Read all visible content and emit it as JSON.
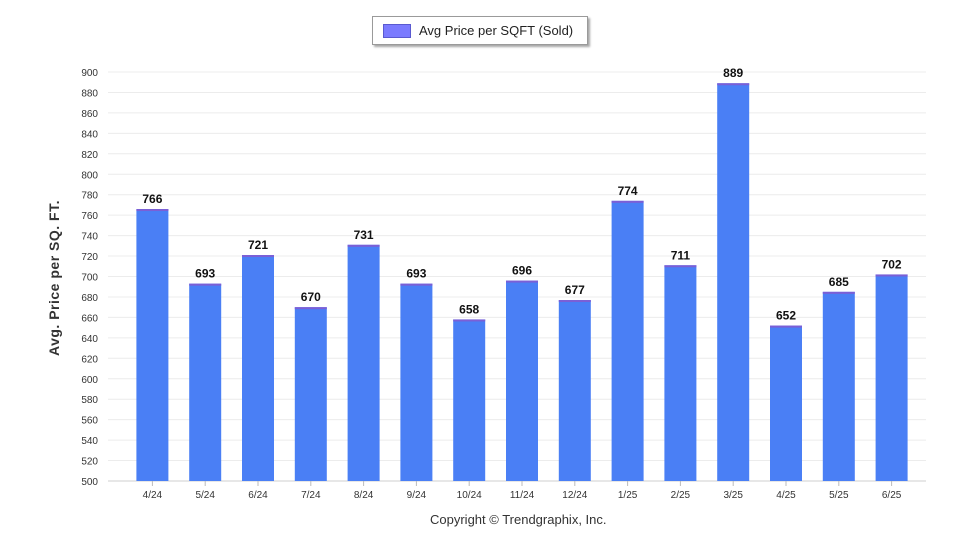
{
  "chart_data": {
    "type": "bar",
    "categories": [
      "4/24",
      "5/24",
      "6/24",
      "7/24",
      "8/24",
      "9/24",
      "10/24",
      "11/24",
      "12/24",
      "1/25",
      "2/25",
      "3/25",
      "4/25",
      "5/25",
      "6/25"
    ],
    "series": [
      {
        "name": "Avg Price per SQFT (Sold)",
        "values": [
          766,
          693,
          721,
          670,
          731,
          693,
          658,
          696,
          677,
          774,
          711,
          889,
          652,
          685,
          702
        ]
      }
    ],
    "ylabel": "Avg. Price per SQ. FT.",
    "ylim": [
      500,
      900
    ],
    "yticks": [
      500,
      520,
      540,
      560,
      580,
      600,
      620,
      640,
      660,
      680,
      700,
      720,
      740,
      760,
      780,
      800,
      820,
      840,
      860,
      880,
      900
    ],
    "grid": true,
    "legend": "top-center",
    "bar_color": "#4a7ff5",
    "bar_top_color": "#7b5fd6"
  },
  "footer": {
    "copyright": "Copyright © Trendgraphix, Inc."
  }
}
